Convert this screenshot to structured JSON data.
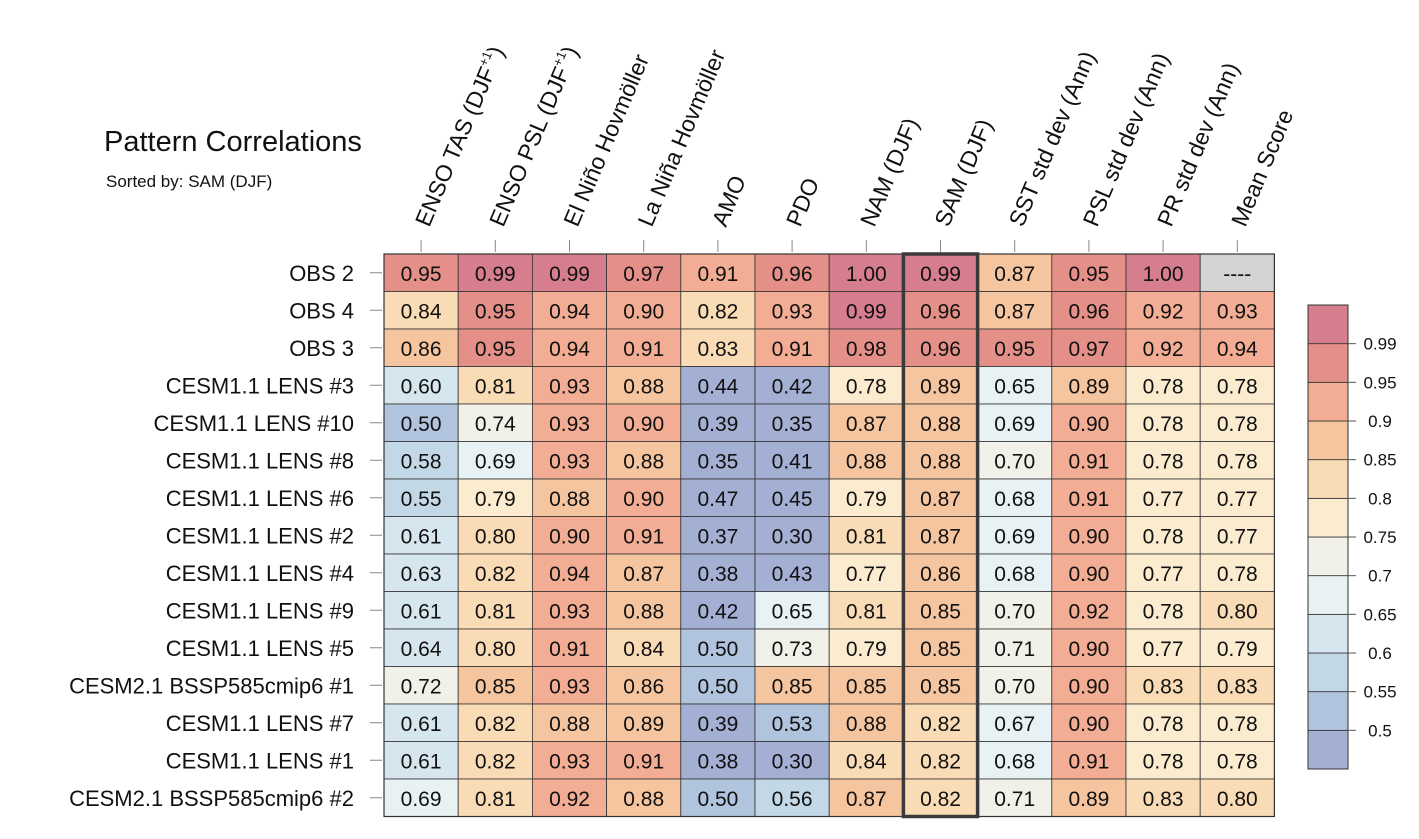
{
  "chart_data": {
    "type": "heatmap",
    "title": "Pattern Correlations",
    "subtitle": "Sorted by: SAM (DJF)",
    "sorted_column": "SAM (DJF)",
    "columns": [
      {
        "base": "ENSO TAS (DJF",
        "sup": "+1",
        "close": ")"
      },
      {
        "base": "ENSO PSL (DJF",
        "sup": "+1",
        "close": ")"
      },
      {
        "base": "El Niño Hovmöller",
        "sup": "",
        "close": ""
      },
      {
        "base": "La Niña Hovmöller",
        "sup": "",
        "close": ""
      },
      {
        "base": "AMO",
        "sup": "",
        "close": ""
      },
      {
        "base": "PDO",
        "sup": "",
        "close": ""
      },
      {
        "base": "NAM (DJF)",
        "sup": "",
        "close": ""
      },
      {
        "base": "SAM (DJF)",
        "sup": "",
        "close": ""
      },
      {
        "base": "SST std dev (Ann)",
        "sup": "",
        "close": ""
      },
      {
        "base": "PSL std dev (Ann)",
        "sup": "",
        "close": ""
      },
      {
        "base": "PR std dev (Ann)",
        "sup": "",
        "close": ""
      },
      {
        "base": "Mean Score",
        "sup": "",
        "close": ""
      }
    ],
    "rows": [
      {
        "label": "OBS 2",
        "values": [
          0.95,
          0.99,
          0.99,
          0.97,
          0.91,
          0.96,
          1.0,
          0.99,
          0.87,
          0.95,
          1.0,
          null
        ]
      },
      {
        "label": "OBS 4",
        "values": [
          0.84,
          0.95,
          0.94,
          0.9,
          0.82,
          0.93,
          0.99,
          0.96,
          0.87,
          0.96,
          0.92,
          0.93
        ]
      },
      {
        "label": "OBS 3",
        "values": [
          0.86,
          0.95,
          0.94,
          0.91,
          0.83,
          0.91,
          0.98,
          0.96,
          0.95,
          0.97,
          0.92,
          0.94
        ]
      },
      {
        "label": "CESM1.1 LENS #3",
        "values": [
          0.6,
          0.81,
          0.93,
          0.88,
          0.44,
          0.42,
          0.78,
          0.89,
          0.65,
          0.89,
          0.78,
          0.78
        ]
      },
      {
        "label": "CESM1.1 LENS #10",
        "values": [
          0.5,
          0.74,
          0.93,
          0.9,
          0.39,
          0.35,
          0.87,
          0.88,
          0.69,
          0.9,
          0.78,
          0.78
        ]
      },
      {
        "label": "CESM1.1 LENS #8",
        "values": [
          0.58,
          0.69,
          0.93,
          0.88,
          0.35,
          0.41,
          0.88,
          0.88,
          0.7,
          0.91,
          0.78,
          0.78
        ]
      },
      {
        "label": "CESM1.1 LENS #6",
        "values": [
          0.55,
          0.79,
          0.88,
          0.9,
          0.47,
          0.45,
          0.79,
          0.87,
          0.68,
          0.91,
          0.77,
          0.77
        ]
      },
      {
        "label": "CESM1.1 LENS #2",
        "values": [
          0.61,
          0.8,
          0.9,
          0.91,
          0.37,
          0.3,
          0.81,
          0.87,
          0.69,
          0.9,
          0.78,
          0.77
        ]
      },
      {
        "label": "CESM1.1 LENS #4",
        "values": [
          0.63,
          0.82,
          0.94,
          0.87,
          0.38,
          0.43,
          0.77,
          0.86,
          0.68,
          0.9,
          0.77,
          0.78
        ]
      },
      {
        "label": "CESM1.1 LENS #9",
        "values": [
          0.61,
          0.81,
          0.93,
          0.88,
          0.42,
          0.65,
          0.81,
          0.85,
          0.7,
          0.92,
          0.78,
          0.8
        ]
      },
      {
        "label": "CESM1.1 LENS #5",
        "values": [
          0.64,
          0.8,
          0.91,
          0.84,
          0.5,
          0.73,
          0.79,
          0.85,
          0.71,
          0.9,
          0.77,
          0.79
        ]
      },
      {
        "label": "CESM2.1 BSSP585cmip6 #1",
        "values": [
          0.72,
          0.85,
          0.93,
          0.86,
          0.5,
          0.85,
          0.85,
          0.85,
          0.7,
          0.9,
          0.83,
          0.83
        ]
      },
      {
        "label": "CESM1.1 LENS #7",
        "values": [
          0.61,
          0.82,
          0.88,
          0.89,
          0.39,
          0.53,
          0.88,
          0.82,
          0.67,
          0.9,
          0.78,
          0.78
        ]
      },
      {
        "label": "CESM1.1 LENS #1",
        "values": [
          0.61,
          0.82,
          0.93,
          0.91,
          0.38,
          0.3,
          0.84,
          0.82,
          0.68,
          0.91,
          0.78,
          0.78
        ]
      },
      {
        "label": "CESM2.1 BSSP585cmip6 #2",
        "values": [
          0.69,
          0.81,
          0.92,
          0.88,
          0.5,
          0.56,
          0.87,
          0.82,
          0.71,
          0.89,
          0.83,
          0.8
        ]
      }
    ],
    "missing_label": "----",
    "missing_color": "#d4d4d4",
    "legend": {
      "levels": [
        "0.5",
        "0.55",
        "0.6",
        "0.65",
        "0.7",
        "0.75",
        "0.8",
        "0.85",
        "0.9",
        "0.95",
        "0.99"
      ],
      "thresholds": [
        0.5,
        0.55,
        0.6,
        0.65,
        0.7,
        0.75,
        0.8,
        0.85,
        0.9,
        0.95,
        0.99
      ],
      "colors": [
        "#a4afd4",
        "#b0c4de",
        "#c3d8e6",
        "#d6e6ef",
        "#e8f1f4",
        "#f1f1e9",
        "#fbecd0",
        "#f9dcb5",
        "#f5c5a0",
        "#f2ad94",
        "#e49088",
        "#d67d8e"
      ],
      "placement": "right"
    }
  }
}
